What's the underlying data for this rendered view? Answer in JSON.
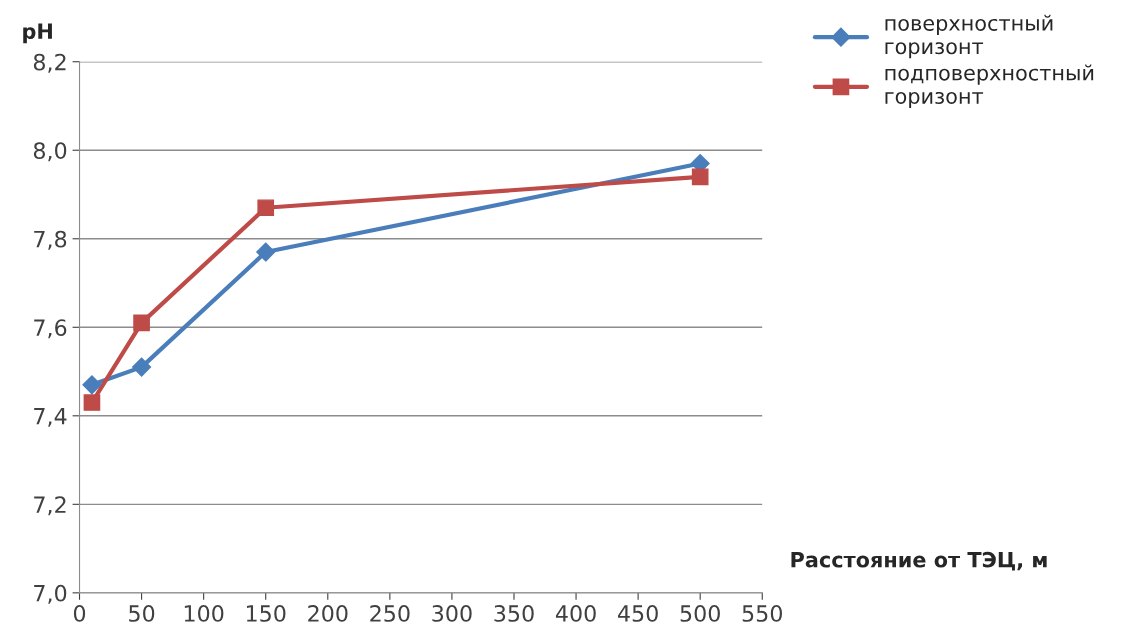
{
  "chart_data": {
    "type": "line",
    "xlabel": "Расстояние от ТЭЦ, м",
    "ylabel": "pH",
    "x": [
      10,
      50,
      150,
      500
    ],
    "series": [
      {
        "name": "поверхностный горизонт",
        "color": "#4a7ebb",
        "marker": "diamond",
        "values": [
          7.47,
          7.51,
          7.77,
          7.97
        ]
      },
      {
        "name": "подповерхностный горизонт",
        "color": "#be4b48",
        "marker": "square",
        "values": [
          7.43,
          7.61,
          7.87,
          7.94
        ]
      }
    ],
    "xlim": [
      0,
      550
    ],
    "xticks": [
      0,
      50,
      100,
      150,
      200,
      250,
      300,
      350,
      400,
      450,
      500,
      550
    ],
    "ylim": [
      7.0,
      8.2
    ],
    "yticks": [
      {
        "value": 7.0,
        "label": "7,0"
      },
      {
        "value": 7.2,
        "label": "7,2"
      },
      {
        "value": 7.4,
        "label": "7,4"
      },
      {
        "value": 7.6,
        "label": "7,6"
      },
      {
        "value": 7.8,
        "label": "7,8"
      },
      {
        "value": 8.0,
        "label": "8,0"
      },
      {
        "value": 8.2,
        "label": "8,2"
      }
    ],
    "grid": "y",
    "legend": "top right",
    "line_style": "solid"
  }
}
